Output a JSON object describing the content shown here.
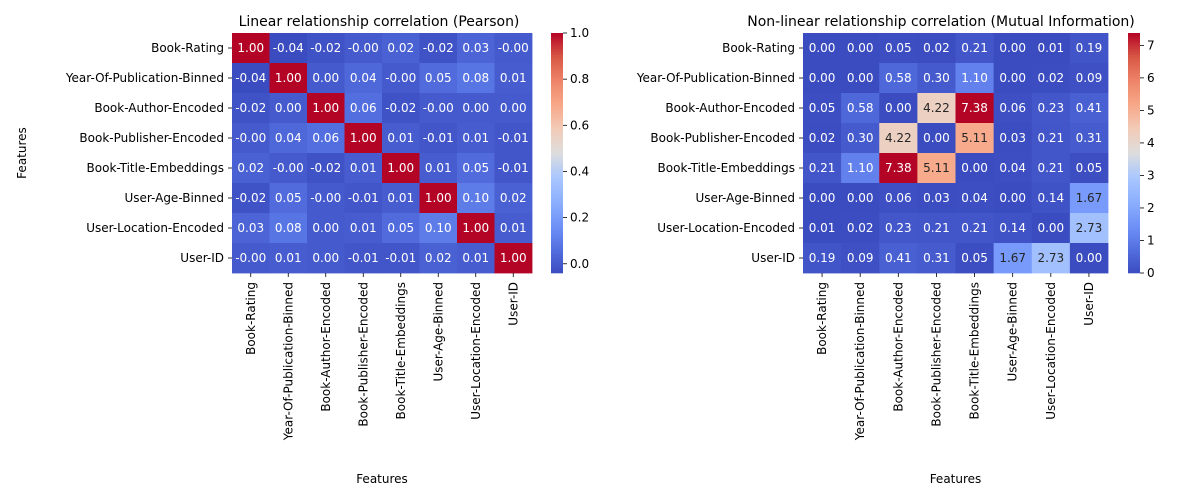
{
  "chart_data": [
    {
      "type": "heatmap",
      "title": "Linear relationship correlation (Pearson)",
      "xlabel": "Features",
      "ylabel": "Features",
      "rows": [
        "Book-Rating",
        "Year-Of-Publication-Binned",
        "Book-Author-Encoded",
        "Book-Publisher-Encoded",
        "Book-Title-Embeddings",
        "User-Age-Binned",
        "User-Location-Encoded",
        "User-ID"
      ],
      "cols": [
        "Book-Rating",
        "Year-Of-Publication-Binned",
        "Book-Author-Encoded",
        "Book-Publisher-Encoded",
        "Book-Title-Embeddings",
        "User-Age-Binned",
        "User-Location-Encoded",
        "User-ID"
      ],
      "values": [
        [
          1.0,
          -0.04,
          -0.02,
          -0.0,
          0.02,
          -0.02,
          0.03,
          -0.0
        ],
        [
          -0.04,
          1.0,
          0.0,
          0.04,
          -0.0,
          0.05,
          0.08,
          0.01
        ],
        [
          -0.02,
          0.0,
          1.0,
          0.06,
          -0.02,
          -0.0,
          0.0,
          0.0
        ],
        [
          -0.0,
          0.04,
          0.06,
          1.0,
          0.01,
          -0.01,
          0.01,
          -0.01
        ],
        [
          0.02,
          -0.0,
          -0.02,
          0.01,
          1.0,
          0.01,
          0.05,
          -0.01
        ],
        [
          -0.02,
          0.05,
          -0.0,
          -0.01,
          0.01,
          1.0,
          0.1,
          0.02
        ],
        [
          0.03,
          0.08,
          0.0,
          0.01,
          0.05,
          0.1,
          1.0,
          0.01
        ],
        [
          -0.0,
          0.01,
          0.0,
          -0.01,
          -0.01,
          0.02,
          0.01,
          1.0
        ]
      ],
      "labels": [
        [
          "1.00",
          "-0.04",
          "-0.02",
          "-0.00",
          "0.02",
          "-0.02",
          "0.03",
          "-0.00"
        ],
        [
          "-0.04",
          "1.00",
          "0.00",
          "0.04",
          "-0.00",
          "0.05",
          "0.08",
          "0.01"
        ],
        [
          "-0.02",
          "0.00",
          "1.00",
          "0.06",
          "-0.02",
          "-0.00",
          "0.00",
          "0.00"
        ],
        [
          "-0.00",
          "0.04",
          "0.06",
          "1.00",
          "0.01",
          "-0.01",
          "0.01",
          "-0.01"
        ],
        [
          "0.02",
          "-0.00",
          "-0.02",
          "0.01",
          "1.00",
          "0.01",
          "0.05",
          "-0.01"
        ],
        [
          "-0.02",
          "0.05",
          "-0.00",
          "-0.01",
          "0.01",
          "1.00",
          "0.10",
          "0.02"
        ],
        [
          "0.03",
          "0.08",
          "0.00",
          "0.01",
          "0.05",
          "0.10",
          "1.00",
          "0.01"
        ],
        [
          "-0.00",
          "0.01",
          "0.00",
          "-0.01",
          "-0.01",
          "0.02",
          "0.01",
          "1.00"
        ]
      ],
      "colormap": "coolwarm",
      "vmin": -0.04,
      "vmax": 1.0,
      "colorbar_ticks": [
        "0.0",
        "0.2",
        "0.4",
        "0.6",
        "0.8",
        "1.0"
      ]
    },
    {
      "type": "heatmap",
      "title": "Non-linear relationship correlation (Mutual Information)",
      "xlabel": "Features",
      "ylabel": "",
      "rows": [
        "Book-Rating",
        "Year-Of-Publication-Binned",
        "Book-Author-Encoded",
        "Book-Publisher-Encoded",
        "Book-Title-Embeddings",
        "User-Age-Binned",
        "User-Location-Encoded",
        "User-ID"
      ],
      "cols": [
        "Book-Rating",
        "Year-Of-Publication-Binned",
        "Book-Author-Encoded",
        "Book-Publisher-Encoded",
        "Book-Title-Embeddings",
        "User-Age-Binned",
        "User-Location-Encoded",
        "User-ID"
      ],
      "values": [
        [
          0.0,
          0.0,
          0.05,
          0.02,
          0.21,
          0.0,
          0.01,
          0.19
        ],
        [
          0.0,
          0.0,
          0.58,
          0.3,
          1.1,
          0.0,
          0.02,
          0.09
        ],
        [
          0.05,
          0.58,
          0.0,
          4.22,
          7.38,
          0.06,
          0.23,
          0.41
        ],
        [
          0.02,
          0.3,
          4.22,
          0.0,
          5.11,
          0.03,
          0.21,
          0.31
        ],
        [
          0.21,
          1.1,
          7.38,
          5.11,
          0.0,
          0.04,
          0.21,
          0.05
        ],
        [
          0.0,
          0.0,
          0.06,
          0.03,
          0.04,
          0.0,
          0.14,
          1.67
        ],
        [
          0.01,
          0.02,
          0.23,
          0.21,
          0.21,
          0.14,
          0.0,
          2.73
        ],
        [
          0.19,
          0.09,
          0.41,
          0.31,
          0.05,
          1.67,
          2.73,
          0.0
        ]
      ],
      "labels": [
        [
          "0.00",
          "0.00",
          "0.05",
          "0.02",
          "0.21",
          "0.00",
          "0.01",
          "0.19"
        ],
        [
          "0.00",
          "0.00",
          "0.58",
          "0.30",
          "1.10",
          "0.00",
          "0.02",
          "0.09"
        ],
        [
          "0.05",
          "0.58",
          "0.00",
          "4.22",
          "7.38",
          "0.06",
          "0.23",
          "0.41"
        ],
        [
          "0.02",
          "0.30",
          "4.22",
          "0.00",
          "5.11",
          "0.03",
          "0.21",
          "0.31"
        ],
        [
          "0.21",
          "1.10",
          "7.38",
          "5.11",
          "0.00",
          "0.04",
          "0.21",
          "0.05"
        ],
        [
          "0.00",
          "0.00",
          "0.06",
          "0.03",
          "0.04",
          "0.00",
          "0.14",
          "1.67"
        ],
        [
          "0.01",
          "0.02",
          "0.23",
          "0.21",
          "0.21",
          "0.14",
          "0.00",
          "2.73"
        ],
        [
          "0.19",
          "0.09",
          "0.41",
          "0.31",
          "0.05",
          "1.67",
          "2.73",
          "0.00"
        ]
      ],
      "colormap": "coolwarm",
      "vmin": 0.0,
      "vmax": 7.38,
      "colorbar_ticks": [
        "0",
        "1",
        "2",
        "3",
        "4",
        "5",
        "6",
        "7"
      ]
    }
  ]
}
